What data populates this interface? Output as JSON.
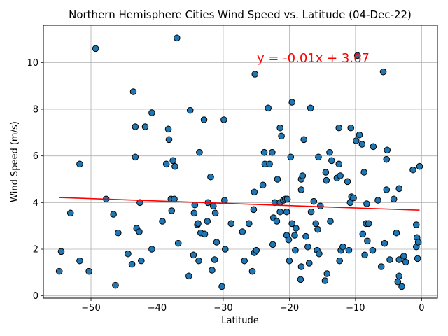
{
  "chart_data": {
    "type": "scatter",
    "title": "Northern Hemisphere Cities Wind Speed vs. Latitude (04-Dec-22)",
    "xlabel": "Latitude",
    "ylabel": "Wind Speed (m/s)",
    "xlim": [
      -57.2,
      2.4
    ],
    "ylim": [
      -0.1,
      11.6
    ],
    "xticks": [
      -50,
      -40,
      -30,
      -20,
      -10,
      0
    ],
    "yticks": [
      0,
      2,
      4,
      6,
      8,
      10
    ],
    "grid": true,
    "colors": {
      "point": "#1f77b4",
      "edge": "#000000",
      "line": "#ff0000",
      "annotation": "#ff0000"
    },
    "annotation": "y = -0.01x + 3.67",
    "regression": {
      "slope": -0.01,
      "intercept": 3.67,
      "x_range": [
        -54.8,
        -0.3
      ]
    },
    "points": [
      [
        -54.8,
        1.05
      ],
      [
        -54.5,
        1.9
      ],
      [
        -53.1,
        3.55
      ],
      [
        -51.7,
        5.65
      ],
      [
        -51.7,
        1.5
      ],
      [
        -50.3,
        1.05
      ],
      [
        -49.3,
        10.6
      ],
      [
        -47.7,
        4.15
      ],
      [
        -46.6,
        3.5
      ],
      [
        -46.3,
        0.45
      ],
      [
        -45.9,
        2.7
      ],
      [
        -44.4,
        1.8
      ],
      [
        -43.8,
        1.35
      ],
      [
        -43.6,
        8.75
      ],
      [
        -43.3,
        5.95
      ],
      [
        -43.3,
        7.25
      ],
      [
        -43.1,
        2.9
      ],
      [
        -42.7,
        2.75
      ],
      [
        -42.6,
        4.0
      ],
      [
        -42.4,
        1.5
      ],
      [
        -41.8,
        7.25
      ],
      [
        -40.8,
        7.85
      ],
      [
        -40.8,
        2.0
      ],
      [
        -39.2,
        3.2
      ],
      [
        -38.6,
        5.65
      ],
      [
        -38.3,
        7.15
      ],
      [
        -38.2,
        6.7
      ],
      [
        -37.9,
        4.15
      ],
      [
        -37.8,
        3.65
      ],
      [
        -37.6,
        5.8
      ],
      [
        -37.4,
        4.15
      ],
      [
        -37.3,
        5.55
      ],
      [
        -37.0,
        11.05
      ],
      [
        -36.8,
        2.25
      ],
      [
        -35.2,
        0.85
      ],
      [
        -35.0,
        7.95
      ],
      [
        -34.5,
        1.75
      ],
      [
        -34.4,
        3.55
      ],
      [
        -34.3,
        3.9
      ],
      [
        -33.9,
        3.05
      ],
      [
        -33.8,
        3.1
      ],
      [
        -33.7,
        1.5
      ],
      [
        -33.6,
        6.15
      ],
      [
        -33.4,
        2.7
      ],
      [
        -32.9,
        7.55
      ],
      [
        -32.8,
        2.65
      ],
      [
        -32.4,
        3.2
      ],
      [
        -32.3,
        4.0
      ],
      [
        -31.9,
        5.1
      ],
      [
        -31.7,
        1.1
      ],
      [
        -31.5,
        3.85
      ],
      [
        -31.3,
        1.55
      ],
      [
        -31.2,
        3.55
      ],
      [
        -31.0,
        2.3
      ],
      [
        -30.2,
        0.4
      ],
      [
        -29.9,
        7.55
      ],
      [
        -29.8,
        4.1
      ],
      [
        -29.7,
        2.0
      ],
      [
        -28.8,
        3.1
      ],
      [
        -27.1,
        2.75
      ],
      [
        -26.8,
        1.5
      ],
      [
        -26.1,
        3.1
      ],
      [
        -25.6,
        1.05
      ],
      [
        -25.4,
        3.7
      ],
      [
        -25.3,
        4.45
      ],
      [
        -25.3,
        1.85
      ],
      [
        -25.2,
        9.5
      ],
      [
        -25.0,
        1.95
      ],
      [
        -24.0,
        4.75
      ],
      [
        -23.8,
        6.15
      ],
      [
        -23.7,
        5.65
      ],
      [
        -23.2,
        8.05
      ],
      [
        -23.0,
        5.65
      ],
      [
        -22.6,
        6.15
      ],
      [
        -22.5,
        2.2
      ],
      [
        -22.4,
        3.35
      ],
      [
        -22.2,
        4.0
      ],
      [
        -21.9,
        3.2
      ],
      [
        -21.8,
        5.0
      ],
      [
        -21.4,
        7.2
      ],
      [
        -21.2,
        6.85
      ],
      [
        -21.4,
        4.0
      ],
      [
        -21.4,
        3.6
      ],
      [
        -20.9,
        4.1
      ],
      [
        -20.6,
        4.15
      ],
      [
        -20.4,
        2.6
      ],
      [
        -20.4,
        3.6
      ],
      [
        -20.3,
        4.15
      ],
      [
        -20.0,
        1.5
      ],
      [
        -20.1,
        2.4
      ],
      [
        -19.8,
        5.95
      ],
      [
        -19.6,
        8.3
      ],
      [
        -19.6,
        3.1
      ],
      [
        -19.2,
        2.6
      ],
      [
        -19.0,
        2.9
      ],
      [
        -19.1,
        1.95
      ],
      [
        -18.3,
        0.7
      ],
      [
        -18.2,
        1.25
      ],
      [
        -18.2,
        4.55
      ],
      [
        -18.2,
        5.0
      ],
      [
        -18.0,
        5.15
      ],
      [
        -17.8,
        6.7
      ],
      [
        -17.5,
        2.55
      ],
      [
        -17.2,
        2.1
      ],
      [
        -17.0,
        1.4
      ],
      [
        -16.8,
        8.05
      ],
      [
        -16.7,
        3.6
      ],
      [
        -16.3,
        4.05
      ],
      [
        -16.0,
        3.1
      ],
      [
        -15.8,
        1.95
      ],
      [
        -15.7,
        2.85
      ],
      [
        -15.6,
        5.95
      ],
      [
        -15.5,
        1.8
      ],
      [
        -15.3,
        3.85
      ],
      [
        -14.6,
        0.65
      ],
      [
        -14.5,
        5.3
      ],
      [
        -14.4,
        4.95
      ],
      [
        -14.3,
        0.95
      ],
      [
        -13.9,
        6.15
      ],
      [
        -13.8,
        3.2
      ],
      [
        -13.6,
        5.8
      ],
      [
        -12.8,
        5.05
      ],
      [
        -12.5,
        7.2
      ],
      [
        -12.5,
        5.65
      ],
      [
        -12.4,
        1.5
      ],
      [
        -12.3,
        5.15
      ],
      [
        -12.2,
        1.95
      ],
      [
        -11.9,
        2.1
      ],
      [
        -11.2,
        4.9
      ],
      [
        -11.0,
        1.95
      ],
      [
        -10.8,
        4.0
      ],
      [
        -10.7,
        7.2
      ],
      [
        -10.6,
        4.25
      ],
      [
        -10.3,
        4.2
      ],
      [
        -9.9,
        6.65
      ],
      [
        -9.7,
        10.3
      ],
      [
        -9.4,
        6.9
      ],
      [
        -9.0,
        6.5
      ],
      [
        -8.9,
        2.65
      ],
      [
        -8.7,
        5.3
      ],
      [
        -8.6,
        1.75
      ],
      [
        -8.4,
        3.1
      ],
      [
        -8.3,
        3.95
      ],
      [
        -8.2,
        2.35
      ],
      [
        -8.0,
        3.1
      ],
      [
        -7.3,
        6.4
      ],
      [
        -7.4,
        1.95
      ],
      [
        -6.6,
        4.1
      ],
      [
        -6.1,
        1.25
      ],
      [
        -5.8,
        9.6
      ],
      [
        -5.6,
        2.25
      ],
      [
        -5.3,
        5.85
      ],
      [
        -5.3,
        4.55
      ],
      [
        -5.2,
        6.25
      ],
      [
        -4.8,
        1.55
      ],
      [
        -4.2,
        4.15
      ],
      [
        -3.8,
        2.7
      ],
      [
        -3.6,
        0.6
      ],
      [
        -3.4,
        0.85
      ],
      [
        -3.4,
        4.6
      ],
      [
        -3.4,
        1.55
      ],
      [
        -3.0,
        0.4
      ],
      [
        -2.7,
        1.7
      ],
      [
        -2.4,
        1.45
      ],
      [
        -1.3,
        5.4
      ],
      [
        -0.8,
        3.05
      ],
      [
        -0.8,
        2.1
      ],
      [
        -0.7,
        2.5
      ],
      [
        -0.6,
        1.6
      ],
      [
        -0.5,
        2.3
      ],
      [
        -0.3,
        5.55
      ]
    ]
  }
}
